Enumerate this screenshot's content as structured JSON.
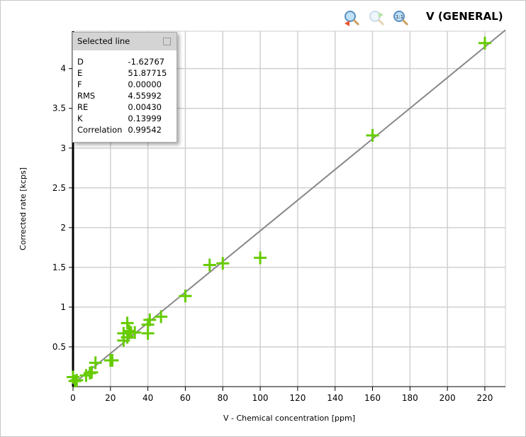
{
  "title": "V (GENERAL)",
  "toolbar": {
    "icons": [
      "zoom-out-icon",
      "zoom-in-disabled-icon",
      "zoom-reset-icon"
    ]
  },
  "panel": {
    "title": "Selected line",
    "rows": [
      {
        "k": "D",
        "v": "-1.62767"
      },
      {
        "k": "E",
        "v": "51.87715"
      },
      {
        "k": "F",
        "v": "0.00000"
      },
      {
        "k": "RMS",
        "v": "4.55992"
      },
      {
        "k": "RE",
        "v": "0.00430"
      },
      {
        "k": "K",
        "v": "0.13999"
      },
      {
        "k": "Correlation",
        "v": "0.99542"
      }
    ]
  },
  "chart_data": {
    "type": "scatter",
    "xlabel": "V - Chemical concentration [ppm]",
    "ylabel": "Corrected rate [kcps]",
    "xlim": [
      0,
      231
    ],
    "ylim": [
      0,
      4.47
    ],
    "xticks": [
      0,
      20,
      40,
      60,
      80,
      100,
      120,
      140,
      160,
      180,
      200,
      220
    ],
    "yticks": [
      0.5,
      1,
      1.5,
      2,
      2.5,
      3,
      3.5,
      4
    ],
    "grid": true,
    "colors": {
      "points": "#66cc00",
      "line": "#888888"
    },
    "points": [
      [
        0,
        0.12
      ],
      [
        1,
        0.07
      ],
      [
        2,
        0.08
      ],
      [
        7,
        0.14
      ],
      [
        9,
        0.17
      ],
      [
        10,
        0.18
      ],
      [
        12,
        0.3
      ],
      [
        20,
        0.33
      ],
      [
        21,
        0.33
      ],
      [
        27,
        0.58
      ],
      [
        27,
        0.67
      ],
      [
        29,
        0.8
      ],
      [
        29,
        0.62
      ],
      [
        30,
        0.7
      ],
      [
        31,
        0.68
      ],
      [
        33,
        0.68
      ],
      [
        40,
        0.67
      ],
      [
        40,
        0.78
      ],
      [
        41,
        0.84
      ],
      [
        47,
        0.88
      ],
      [
        60,
        1.14
      ],
      [
        73,
        1.53
      ],
      [
        80,
        1.55
      ],
      [
        100,
        1.62
      ],
      [
        160,
        3.16
      ],
      [
        220,
        4.32
      ]
    ],
    "fit_line": {
      "D": -1.62767,
      "E": 51.87715
    }
  }
}
